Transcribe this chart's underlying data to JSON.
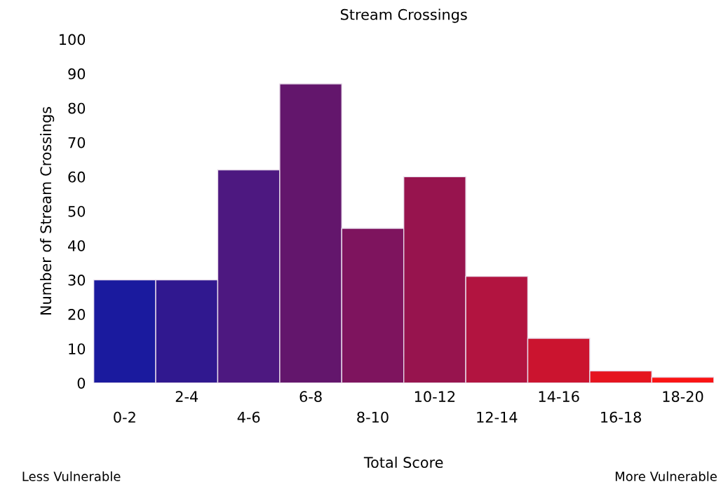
{
  "chart_data": {
    "type": "bar",
    "title": "Stream Crossings",
    "xlabel": "Total Score",
    "ylabel": "Number of Stream Crossings",
    "categories": [
      "0-2",
      "2-4",
      "4-6",
      "6-8",
      "8-10",
      "10-12",
      "12-14",
      "14-16",
      "16-18",
      "18-20"
    ],
    "values": [
      30,
      30,
      62,
      87,
      45,
      60,
      31,
      13,
      3.5,
      1.7
    ],
    "colors": [
      "#1a1a9e",
      "#30188f",
      "#4d1880",
      "#63166c",
      "#7e145e",
      "#97144e",
      "#b21440",
      "#cb142f",
      "#e5141f",
      "#fa1414"
    ],
    "ylim": [
      0,
      100
    ],
    "yticks": [
      0,
      10,
      20,
      30,
      40,
      50,
      60,
      70,
      80,
      90,
      100
    ],
    "grid": false,
    "annotations": [
      "Less Vulnerable",
      "More Vulnerable"
    ]
  }
}
